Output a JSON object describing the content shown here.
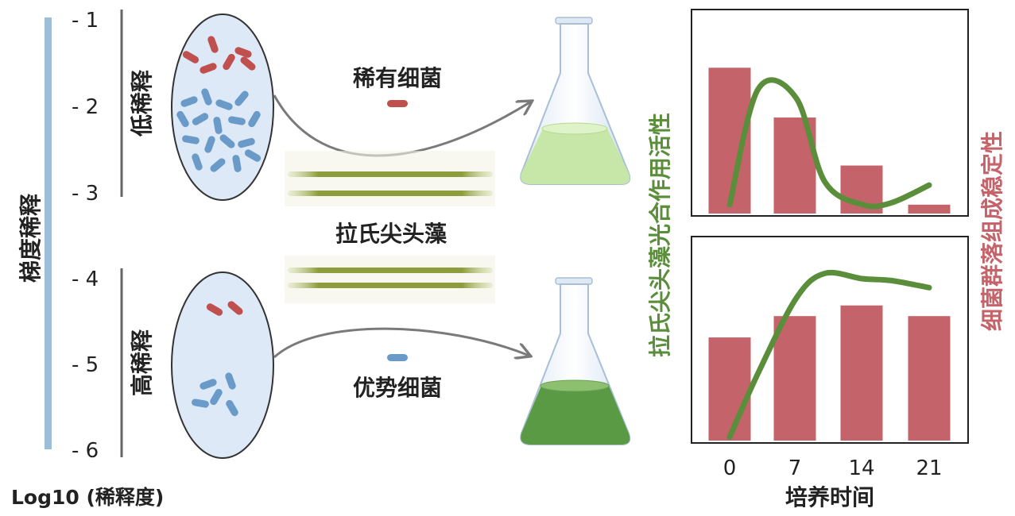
{
  "left_axis": {
    "title": "梯度稀释",
    "ticks": [
      "- 1",
      "- 2",
      "- 3",
      "- 4",
      "- 5",
      "- 6"
    ],
    "bottom_label": "Log10 (稀释度)"
  },
  "groups": {
    "low": "低稀释",
    "high": "高稀释"
  },
  "bacteria": {
    "rare": "稀有细菌",
    "dominant": "优势细菌",
    "rare_color": "#c0504d",
    "dominant_color": "#6a9bc8"
  },
  "alga_label": "拉氏尖头藻",
  "colors": {
    "photosynthesis_line": "#5a8e3a",
    "stability_bars": "#c4646a",
    "gradient_bar": "#9bbfd8",
    "flask_light": "#c7e7a8",
    "flask_dark": "#5a9a44"
  },
  "right_axis_left_label": "拉氏尖头藻光合作用活性",
  "right_axis_right_label": "细菌群落组成稳定性",
  "chart_data": [
    {
      "type": "bar",
      "panel": "top",
      "categories": [
        "0",
        "7",
        "14",
        "21"
      ],
      "values": [
        0.82,
        0.54,
        0.27,
        0.05
      ],
      "ylim": [
        0,
        1
      ],
      "line": {
        "x": [
          0,
          3,
          7,
          10,
          14,
          17,
          21
        ],
        "y": [
          0.05,
          0.7,
          0.65,
          0.18,
          0.05,
          0.06,
          0.16
        ]
      }
    },
    {
      "type": "bar",
      "panel": "bottom",
      "categories": [
        "0",
        "7",
        "14",
        "21"
      ],
      "values": [
        0.58,
        0.7,
        0.76,
        0.7
      ],
      "ylim": [
        0,
        1
      ],
      "line": {
        "x": [
          0,
          3,
          7,
          10,
          14,
          17,
          21
        ],
        "y": [
          0.02,
          0.38,
          0.8,
          0.94,
          0.91,
          0.9,
          0.86
        ]
      },
      "xlabel": "培养时间"
    }
  ]
}
